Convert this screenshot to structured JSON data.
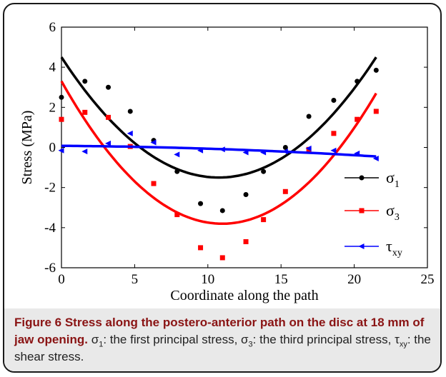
{
  "chart_data": {
    "type": "scatter",
    "xlabel": "Coordinate along the path",
    "ylabel": "Stress (MPa)",
    "xlim": [
      0,
      25
    ],
    "ylim": [
      -6,
      6
    ],
    "xticks": [
      "0",
      "5",
      "10",
      "15",
      "20",
      "25"
    ],
    "yticks": [
      "6",
      "4",
      "2",
      "0",
      "-2",
      "-4",
      "-6"
    ],
    "legend_position": "right",
    "series": [
      {
        "name": "σ1",
        "name_main": "σ",
        "name_sub": "1",
        "color": "#000000",
        "marker": "circle",
        "x": [
          0,
          1.6,
          3.2,
          4.7,
          6.3,
          7.9,
          9.5,
          11.0,
          12.6,
          13.8,
          15.3,
          16.9,
          18.6,
          20.2,
          21.5
        ],
        "y": [
          2.5,
          3.3,
          3.0,
          1.8,
          0.35,
          -1.2,
          -2.8,
          -3.15,
          -2.35,
          -1.2,
          0.0,
          1.55,
          2.35,
          3.3,
          3.85
        ],
        "fit": {
          "x": [
            0,
            10.75,
            21.5
          ],
          "y": [
            4.5,
            -1.5,
            4.5
          ]
        }
      },
      {
        "name": "σ3",
        "name_main": "σ",
        "name_sub": "3",
        "color": "#ff0000",
        "marker": "square",
        "x": [
          0,
          1.6,
          3.2,
          4.7,
          6.3,
          7.9,
          9.5,
          11.0,
          12.6,
          13.8,
          15.3,
          16.9,
          18.6,
          20.2,
          21.5
        ],
        "y": [
          1.4,
          1.75,
          1.5,
          0.05,
          -1.8,
          -3.35,
          -5.0,
          -5.5,
          -4.7,
          -3.6,
          -2.2,
          -0.1,
          0.7,
          1.4,
          1.8
        ],
        "fit": {
          "x": [
            0,
            10.75,
            21.5
          ],
          "y": [
            3.3,
            -3.8,
            2.7
          ]
        }
      },
      {
        "name": "τxy",
        "name_main": "τ",
        "name_sub": "xy",
        "color": "#0000ff",
        "marker": "triangle-left",
        "x": [
          0,
          1.6,
          3.2,
          4.7,
          6.3,
          7.9,
          9.5,
          11.0,
          12.6,
          13.8,
          15.3,
          16.9,
          18.6,
          20.2,
          21.5
        ],
        "y": [
          -0.15,
          -0.2,
          0.2,
          0.7,
          0.25,
          -0.35,
          -0.15,
          -0.1,
          -0.25,
          -0.25,
          -0.2,
          -0.05,
          -0.15,
          -0.3,
          -0.55
        ],
        "fit": {
          "x": [
            0,
            10.75,
            21.5
          ],
          "y": [
            0.08,
            -0.08,
            -0.45
          ]
        }
      }
    ]
  },
  "caption": {
    "title": "Figure 6 Stress along the postero-anterior path on the disc at 18 mm of jaw opening.",
    "p1": "σ",
    "s1": "1",
    "p2": ": the first principal stress, σ",
    "s2": "3",
    "p3": ": the third principal stress, τ",
    "s3": "xy",
    "p4": ": the shear stress."
  }
}
